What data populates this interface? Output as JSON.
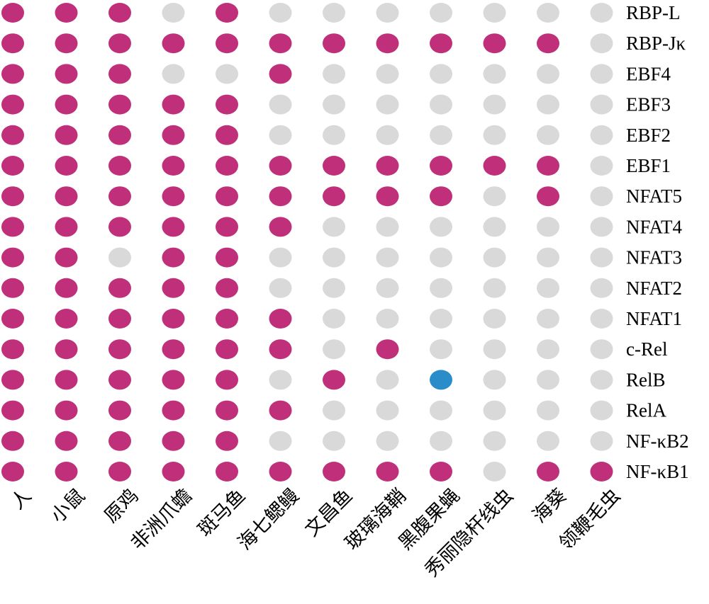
{
  "chart_data": {
    "type": "heatmap",
    "species": [
      "人",
      "小鼠",
      "原鸡",
      "非洲爪蟾",
      "斑马鱼",
      "海七鳃鳗",
      "文昌鱼",
      "玻璃海鞘",
      "黑腹果蝇",
      "秀丽隐杆线虫",
      "海葵",
      "领鞭毛虫"
    ],
    "proteins": [
      "RBP-L",
      "RBP-Jκ",
      "EBF4",
      "EBF3",
      "EBF2",
      "EBF1",
      "NFAT5",
      "NFAT4",
      "NFAT3",
      "NFAT2",
      "NFAT1",
      "c-Rel",
      "RelB",
      "RelA",
      "NF-κB2",
      "NF-κB1"
    ],
    "matrix": [
      [
        1,
        1,
        1,
        0,
        1,
        0,
        0,
        0,
        0,
        0,
        0,
        0
      ],
      [
        1,
        1,
        1,
        1,
        1,
        1,
        1,
        1,
        1,
        1,
        1,
        0
      ],
      [
        1,
        1,
        1,
        0,
        0,
        1,
        0,
        0,
        0,
        0,
        0,
        0
      ],
      [
        1,
        1,
        1,
        1,
        1,
        0,
        0,
        0,
        0,
        0,
        0,
        0
      ],
      [
        1,
        1,
        1,
        1,
        1,
        0,
        0,
        0,
        0,
        0,
        0,
        0
      ],
      [
        1,
        1,
        1,
        1,
        1,
        1,
        1,
        1,
        1,
        1,
        1,
        0
      ],
      [
        1,
        1,
        1,
        1,
        1,
        1,
        1,
        1,
        1,
        0,
        1,
        0
      ],
      [
        1,
        1,
        1,
        1,
        1,
        1,
        0,
        0,
        0,
        0,
        0,
        0
      ],
      [
        1,
        1,
        0,
        1,
        1,
        0,
        0,
        0,
        0,
        0,
        0,
        0
      ],
      [
        1,
        1,
        1,
        1,
        1,
        0,
        0,
        0,
        0,
        0,
        0,
        0
      ],
      [
        1,
        1,
        1,
        1,
        1,
        1,
        0,
        0,
        0,
        0,
        0,
        0
      ],
      [
        1,
        1,
        1,
        1,
        1,
        1,
        0,
        1,
        0,
        0,
        0,
        0
      ],
      [
        1,
        1,
        1,
        1,
        1,
        0,
        1,
        0,
        2,
        0,
        0,
        0
      ],
      [
        1,
        1,
        1,
        1,
        1,
        1,
        0,
        0,
        0,
        0,
        0,
        0
      ],
      [
        1,
        1,
        1,
        1,
        1,
        0,
        0,
        0,
        0,
        0,
        0,
        0
      ],
      [
        1,
        1,
        1,
        1,
        1,
        1,
        1,
        1,
        1,
        0,
        1,
        1
      ]
    ],
    "colors": {
      "0": "#d9d9d9",
      "1": "#c0307a",
      "2": "#2a8cc8"
    },
    "legend": "none",
    "grid": false
  }
}
